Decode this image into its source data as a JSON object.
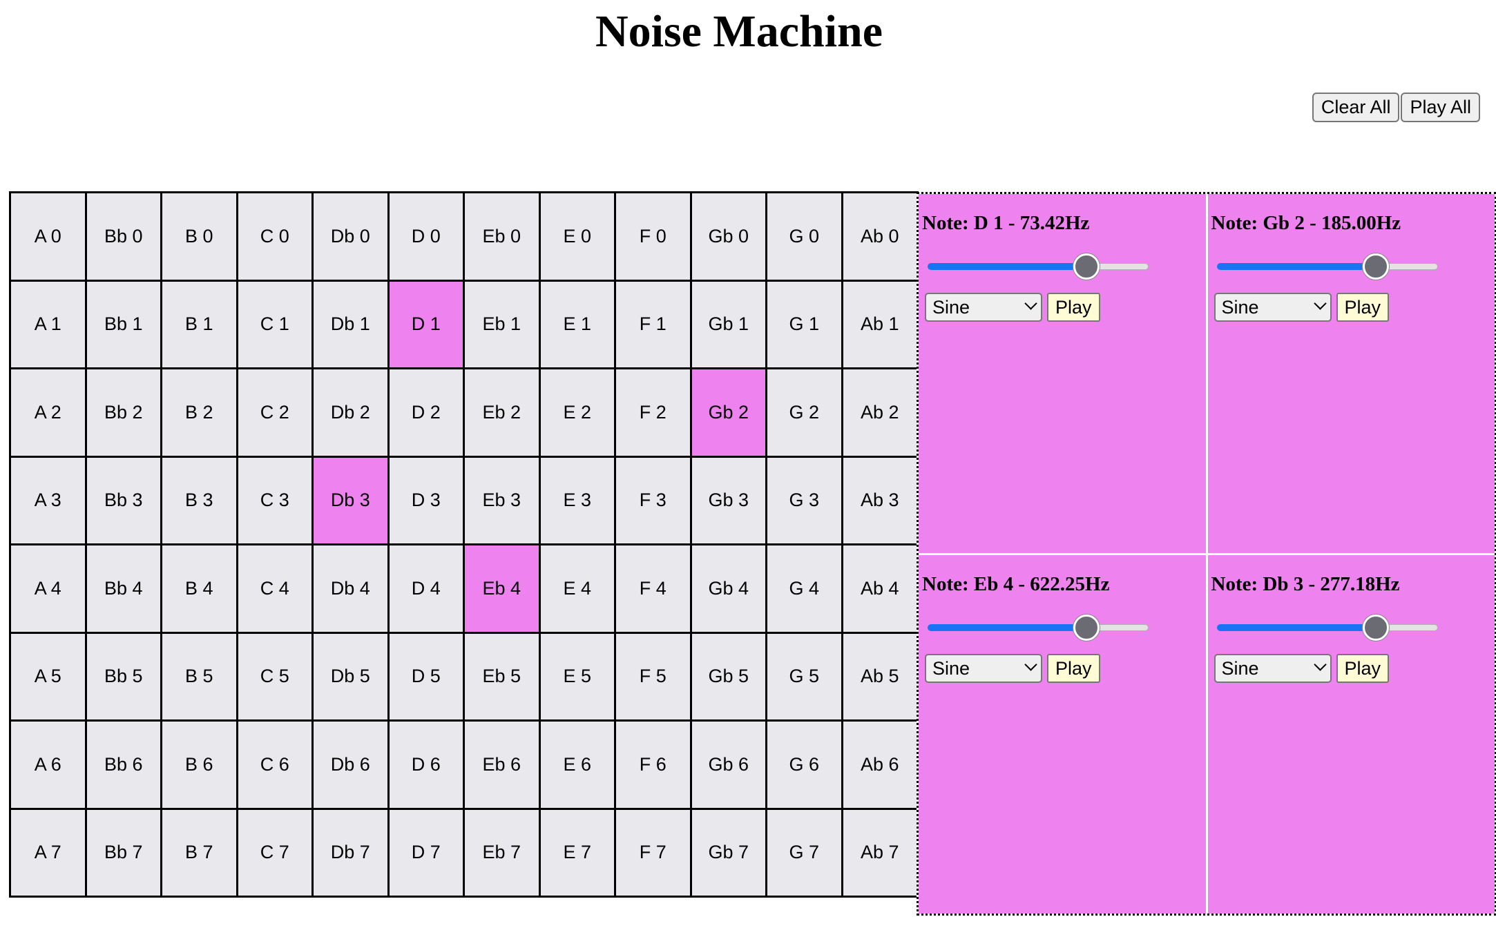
{
  "page": {
    "title": "Noise Machine"
  },
  "toolbar": {
    "clear_label": "Clear All",
    "play_label": "Play All"
  },
  "colors": {
    "selected": "#ee82ee",
    "cell": "#e9e8ec",
    "slider_fill": "#1a73f5",
    "play_button": "#fffbd5"
  },
  "grid": {
    "note_names": [
      "A",
      "Bb",
      "B",
      "C",
      "Db",
      "D",
      "Eb",
      "E",
      "F",
      "Gb",
      "G",
      "Ab"
    ],
    "octaves": [
      0,
      1,
      2,
      3,
      4,
      5,
      6,
      7
    ],
    "selected": [
      "D 1",
      "Gb 2",
      "Db 3",
      "Eb 4"
    ]
  },
  "notes": [
    {
      "title": "Note: D 1 - 73.42Hz",
      "waveform": "Sine",
      "play_label": "Play",
      "volume": 0.72
    },
    {
      "title": "Note: Gb 2 - 185.00Hz",
      "waveform": "Sine",
      "play_label": "Play",
      "volume": 0.72
    },
    {
      "title": "Note: Eb 4 - 622.25Hz",
      "waveform": "Sine",
      "play_label": "Play",
      "volume": 0.72
    },
    {
      "title": "Note: Db 3 - 277.18Hz",
      "waveform": "Sine",
      "play_label": "Play",
      "volume": 0.72
    }
  ]
}
